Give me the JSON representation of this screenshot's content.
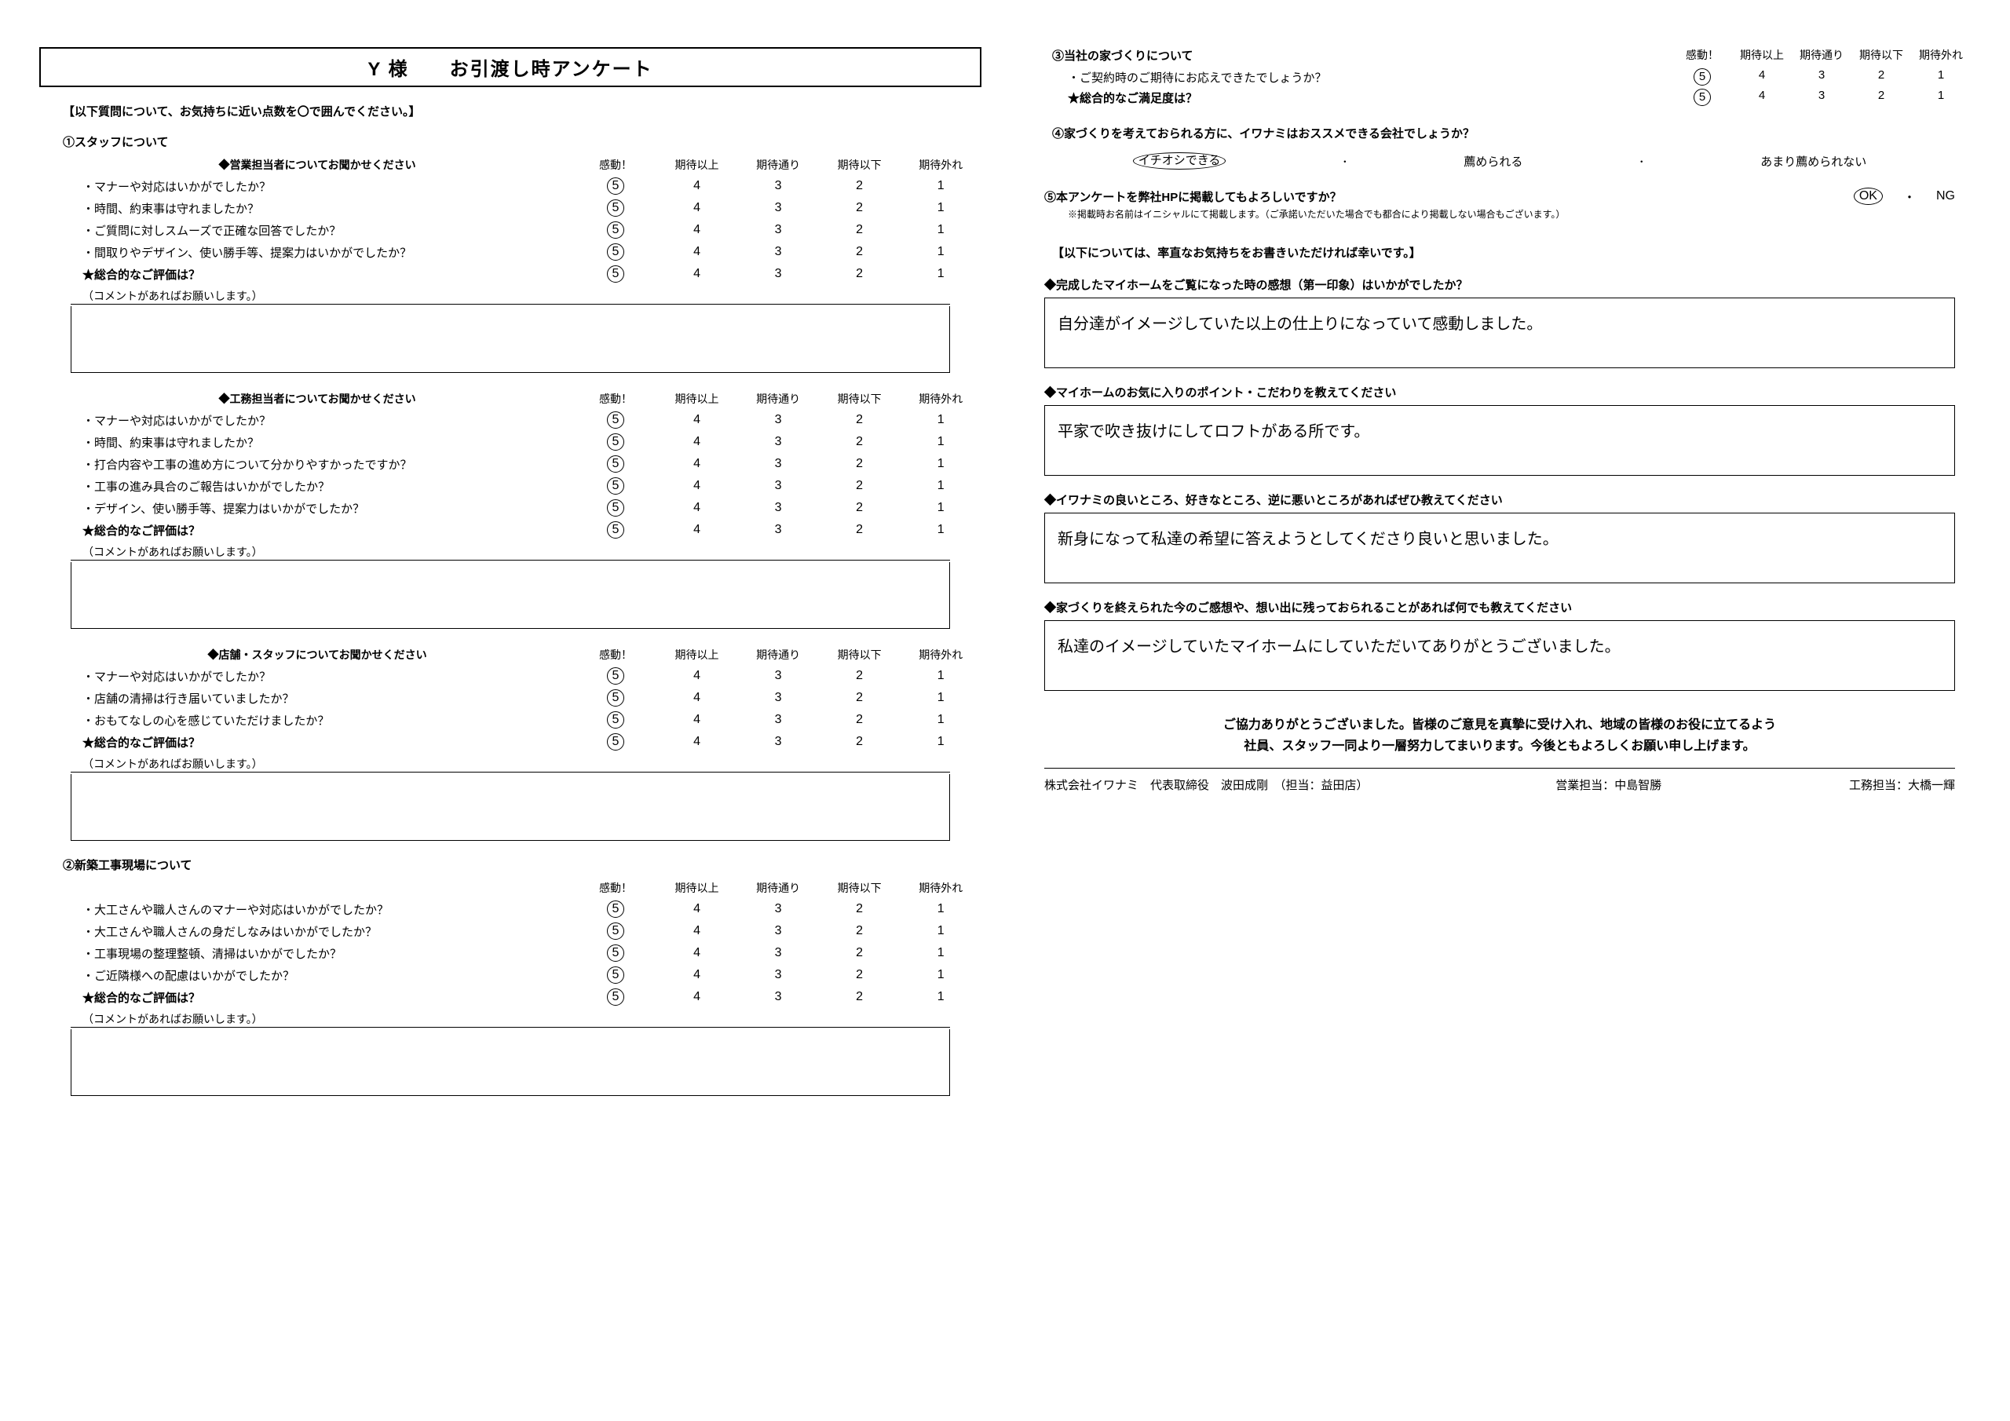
{
  "title": "Y 様　　お引渡し時アンケート",
  "instruction": "【以下質問について、お気持ちに近い点数を〇で囲んでください。】",
  "rating_headers": [
    "感動！",
    "期待以上",
    "期待通り",
    "期待以下",
    "期待外れ"
  ],
  "rating_values": [
    "5",
    "4",
    "3",
    "2",
    "1"
  ],
  "left": {
    "sections": [
      {
        "num": "①スタッフについて",
        "groups": [
          {
            "head": "◆営業担当者についてお聞かせください",
            "items": [
              {
                "q": "・マナーや対応はいかがでしたか？",
                "sel": 0
              },
              {
                "q": "・時間、約束事は守れましたか？",
                "sel": 0
              },
              {
                "q": "・ご質問に対しスムーズで正確な回答でしたか？",
                "sel": 0
              },
              {
                "q": "・間取りやデザイン、使い勝手等、提案力はいかがでしたか？",
                "sel": 0
              },
              {
                "q": "★総合的なご評価は？",
                "sel": 0,
                "bold": true
              }
            ],
            "comment": "（コメントがあればお願いします。）"
          },
          {
            "head": "◆工務担当者についてお聞かせください",
            "items": [
              {
                "q": "・マナーや対応はいかがでしたか？",
                "sel": 0
              },
              {
                "q": "・時間、約束事は守れましたか？",
                "sel": 0
              },
              {
                "q": "・打合内容や工事の進め方について分かりやすかったですか？",
                "sel": 0
              },
              {
                "q": "・工事の進み具合のご報告はいかがでしたか？",
                "sel": 0
              },
              {
                "q": "・デザイン、使い勝手等、提案力はいかがでしたか？",
                "sel": 0
              },
              {
                "q": "★総合的なご評価は？",
                "sel": 0,
                "bold": true
              }
            ],
            "comment": "（コメントがあればお願いします。）"
          },
          {
            "head": "◆店舗・スタッフについてお聞かせください",
            "items": [
              {
                "q": "・マナーや対応はいかがでしたか？",
                "sel": 0
              },
              {
                "q": "・店舗の清掃は行き届いていましたか？",
                "sel": 0
              },
              {
                "q": "・おもてなしの心を感じていただけましたか？",
                "sel": 0
              },
              {
                "q": "★総合的なご評価は？",
                "sel": 0,
                "bold": true
              }
            ],
            "comment": "（コメントがあればお願いします。）"
          }
        ]
      },
      {
        "num": "②新築工事現場について",
        "groups": [
          {
            "head": "",
            "items": [
              {
                "q": "・大工さんや職人さんのマナーや対応はいかがでしたか？",
                "sel": 0
              },
              {
                "q": "・大工さんや職人さんの身だしなみはいかがでしたか？",
                "sel": 0
              },
              {
                "q": "・工事現場の整理整頓、清掃はいかがでしたか？",
                "sel": 0
              },
              {
                "q": "・ご近隣様への配慮はいかがでしたか？",
                "sel": 0
              },
              {
                "q": "★総合的なご評価は？",
                "sel": 0,
                "bold": true
              }
            ],
            "comment": "（コメントがあればお願いします。）"
          }
        ]
      }
    ]
  },
  "right": {
    "s3": {
      "num": "③当社の家づくりについて",
      "items": [
        {
          "q": "・ご契約時のご期待にお応えできたでしょうか？",
          "sel": 0
        },
        {
          "q": "★総合的なご満足度は？",
          "sel": 0,
          "bold": true
        }
      ]
    },
    "s4": {
      "num": "④家づくりを考えておられる方に、イワナミはおススメできる会社でしょうか？",
      "opts": [
        "イチオシできる",
        "薦められる",
        "あまり薦められない"
      ],
      "sel": 0
    },
    "s5": {
      "num": "⑤本アンケートを弊社HPに掲載してもよろしいですか？",
      "opts": [
        "OK",
        "NG"
      ],
      "sel": 0,
      "note": "※掲載時お名前はイニシャルにて掲載します。（ご承諾いただいた場合でも都合により掲載しない場合もございます。）"
    },
    "free_instr": "【以下については、率直なお気持ちをお書きいただければ幸いです。】",
    "free": [
      {
        "h": "◆完成したマイホームをご覧になった時の感想（第一印象）はいかがでしたか？",
        "a": "自分達がイメージしていた以上の仕上りになっていて感動しました。"
      },
      {
        "h": "◆マイホームのお気に入りのポイント・こだわりを教えてください",
        "a": "平家で吹き抜けにしてロフトがある所です。"
      },
      {
        "h": "◆イワナミの良いところ、好きなところ、逆に悪いところがあればぜひ教えてください",
        "a": "新身になって私達の希望に答えようとしてくださり良いと思いました。"
      },
      {
        "h": "◆家づくりを終えられた今のご感想や、想い出に残っておられることがあれば何でも教えてください",
        "a": "私達のイメージしていたマイホームにしていただいてありがとうございました。"
      }
    ],
    "footer1": "ご協力ありがとうございました。皆様のご意見を真摯に受け入れ、地域の皆様のお役に立てるよう",
    "footer2": "社員、スタッフ一同より一層努力してまいります。今後ともよろしくお願い申し上げます。",
    "company": "株式会社イワナミ　代表取締役　波田成剛　（担当：益田店）",
    "sales": "営業担当：中島智勝",
    "const": "工務担当：大橋一輝"
  }
}
